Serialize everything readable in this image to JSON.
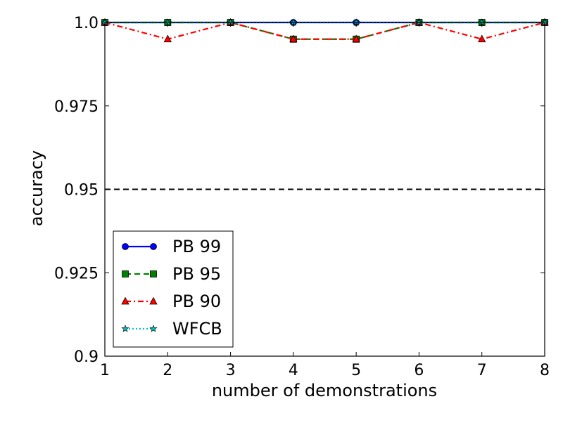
{
  "chart_data": {
    "type": "line",
    "title": "",
    "xlabel": "number of demonstrations",
    "ylabel": "accuracy",
    "x": [
      1,
      2,
      3,
      4,
      5,
      6,
      7,
      8
    ],
    "xlim": [
      1,
      8
    ],
    "ylim": [
      0.9,
      1.0
    ],
    "xticks": [
      1,
      2,
      3,
      4,
      5,
      6,
      7,
      8
    ],
    "xtick_labels": [
      "1",
      "2",
      "3",
      "4",
      "5",
      "6",
      "7",
      "8"
    ],
    "yticks": [
      0.9,
      0.925,
      0.95,
      0.975,
      1.0
    ],
    "ytick_labels": [
      "0.9",
      "0.925",
      "0.95",
      "0.975",
      "1.0"
    ],
    "grid": false,
    "legend_position": "lower-left",
    "reference_line": {
      "y": 0.95,
      "color": "#000000",
      "style": "dashed"
    },
    "series": [
      {
        "name": "PB 99",
        "values": [
          1.0,
          1.0,
          1.0,
          1.0,
          1.0,
          1.0,
          1.0,
          1.0
        ],
        "color": "#0000ff",
        "marker": "circle",
        "dash": "solid"
      },
      {
        "name": "PB 95",
        "values": [
          1.0,
          1.0,
          1.0,
          0.995,
          0.995,
          1.0,
          1.0,
          1.0
        ],
        "color": "#008000",
        "marker": "square",
        "dash": "dashed"
      },
      {
        "name": "PB 90",
        "values": [
          1.0,
          0.995,
          1.0,
          0.995,
          0.995,
          1.0,
          0.995,
          1.0
        ],
        "color": "#ff0000",
        "marker": "triangle",
        "dash": "dashdot"
      },
      {
        "name": "WFCB",
        "values": [
          1.0,
          1.0,
          1.0,
          1.0,
          1.0,
          1.0,
          1.0,
          1.0
        ],
        "color": "#00bfbf",
        "marker": "star",
        "dash": "dotted"
      }
    ]
  }
}
